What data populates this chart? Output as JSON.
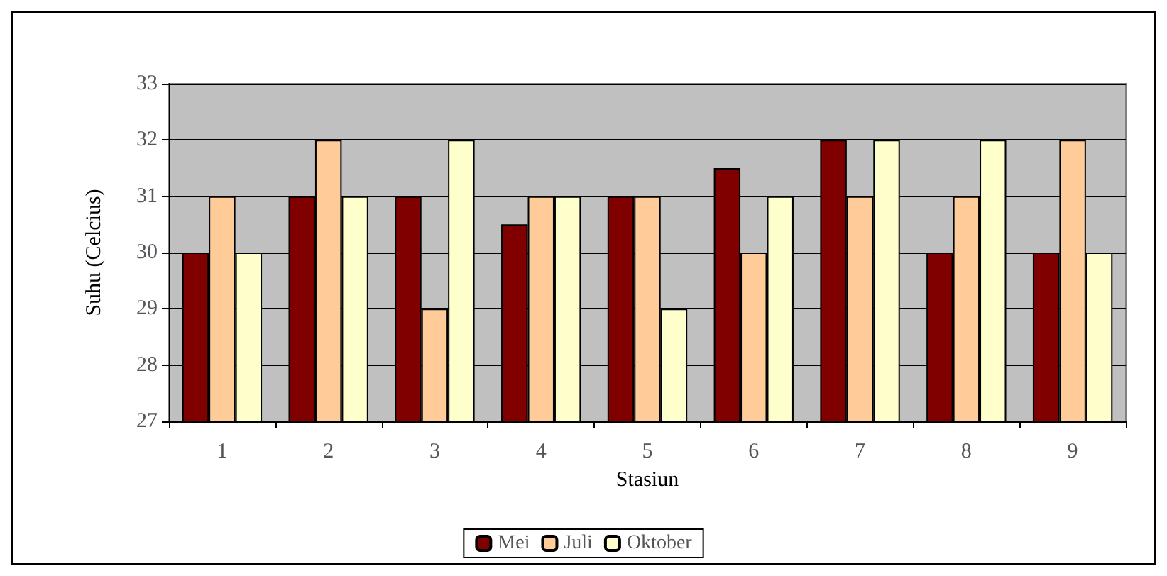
{
  "chart_data": {
    "type": "bar",
    "xlabel": "Stasiun",
    "ylabel": "Suhu (Celcius)",
    "categories": [
      "1",
      "2",
      "3",
      "4",
      "5",
      "6",
      "7",
      "8",
      "9"
    ],
    "series": [
      {
        "name": "Mei",
        "color": "#800000",
        "values": [
          30,
          31,
          31,
          30.5,
          31,
          31.5,
          32,
          30,
          30
        ]
      },
      {
        "name": "Juli",
        "color": "#ffcc99",
        "values": [
          31,
          32,
          29,
          31,
          31,
          30,
          31,
          31,
          32
        ]
      },
      {
        "name": "Oktober",
        "color": "#ffffcc",
        "values": [
          30,
          31,
          32,
          31,
          29,
          31,
          32,
          32,
          30
        ]
      }
    ],
    "ylim": [
      27,
      33
    ],
    "yticks": [
      27,
      28,
      29,
      30,
      31,
      32,
      33
    ],
    "grid": "y",
    "legend": "bottom"
  }
}
